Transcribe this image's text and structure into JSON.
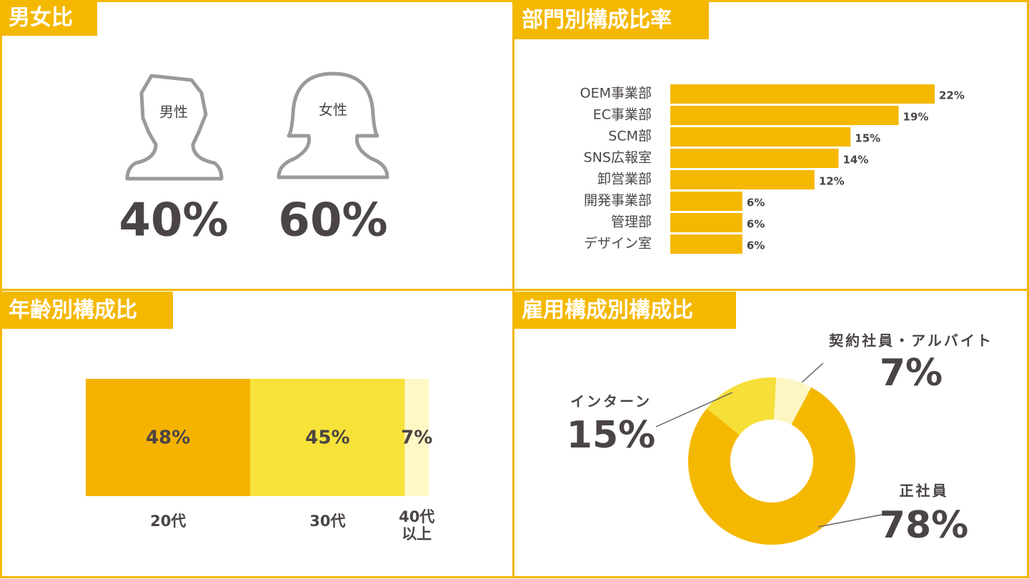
{
  "chart_data": [
    {
      "type": "pictogram",
      "title": "男女比",
      "categories": [
        "男性",
        "女性"
      ],
      "values": [
        40,
        60
      ],
      "value_labels": [
        "40%",
        "60%"
      ]
    },
    {
      "type": "hbar",
      "title": "部門別構成比率",
      "categories": [
        "OEM事業部",
        "EC事業部",
        "SCM部",
        "SNS広報室",
        "卸営業部",
        "開発事業部",
        "管理部",
        "デザイン室"
      ],
      "values": [
        22,
        19,
        15,
        14,
        12,
        6,
        6,
        6
      ],
      "value_labels": [
        "22%",
        "19%",
        "15%",
        "14%",
        "12%",
        "6%",
        "6%",
        "6%"
      ],
      "color": "#f5b800"
    },
    {
      "type": "stacked",
      "title": "年齢別構成比",
      "categories": [
        "20代",
        "30代",
        "40代\n以上"
      ],
      "values": [
        48,
        45,
        7
      ],
      "value_labels": [
        "48%",
        "45%",
        "7%"
      ],
      "colors": [
        "#f5b300",
        "#f7e23a",
        "#fdf8c4"
      ]
    },
    {
      "type": "donut",
      "title": "雇用構成別構成比",
      "categories": [
        "契約社員・アルバイト",
        "正社員",
        "インターン"
      ],
      "values": [
        7,
        78,
        15
      ],
      "value_labels": [
        "7%",
        "78%",
        "15%"
      ],
      "colors": [
        "#fdf6c3",
        "#f5b800",
        "#f5df38"
      ]
    }
  ]
}
